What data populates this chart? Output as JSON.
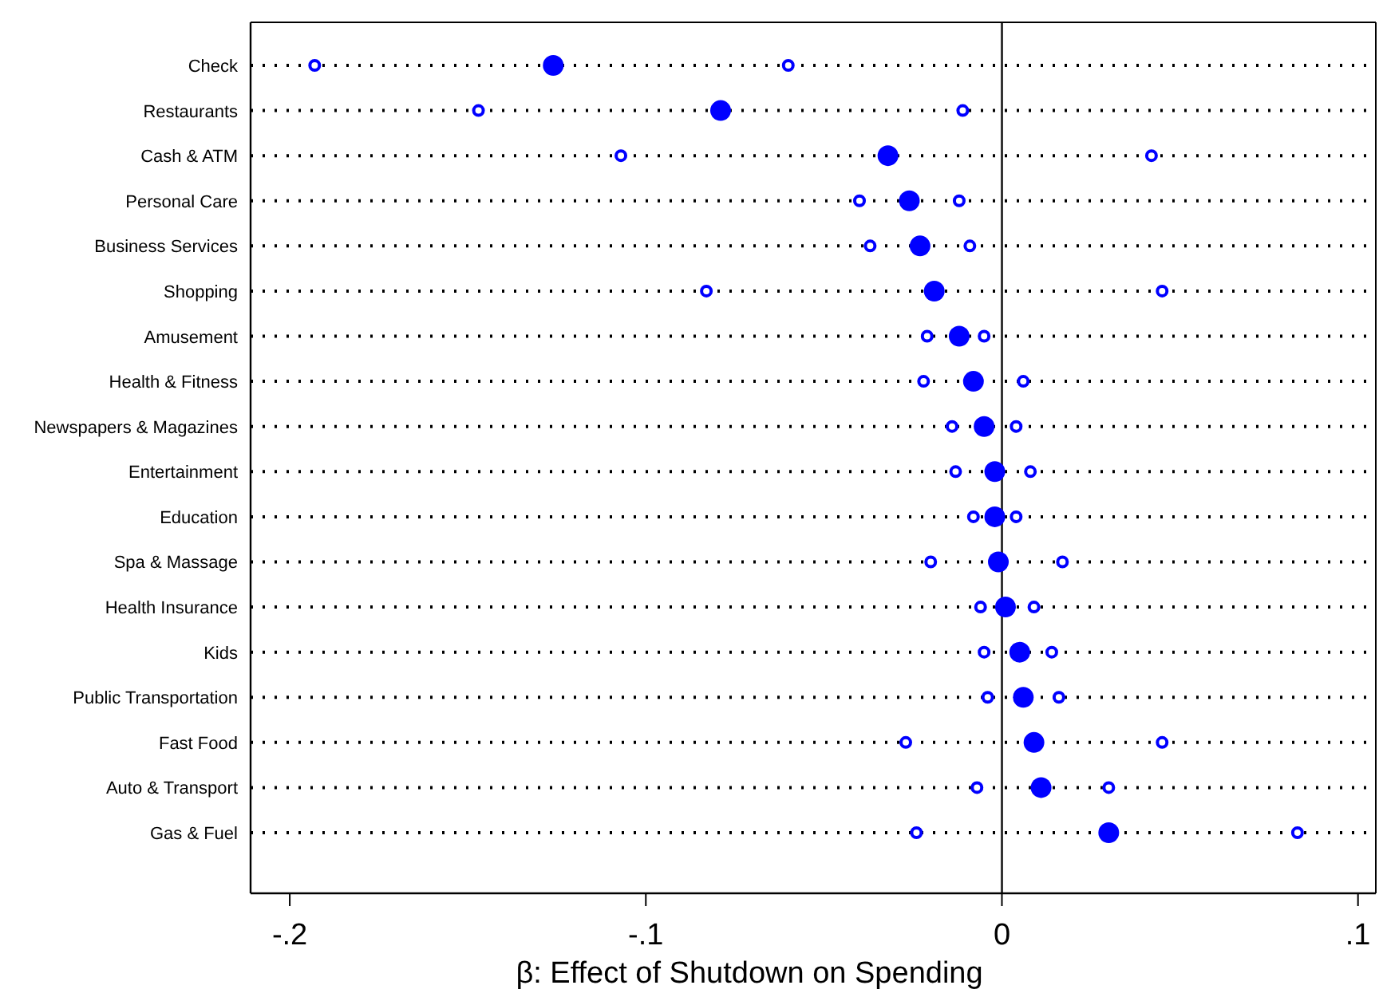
{
  "chart_data": {
    "type": "scatter",
    "orientation": "horizontal",
    "xlabel": "β: Effect of Shutdown on Spending",
    "categories": [
      "Check",
      "Restaurants",
      "Cash & ATM",
      "Personal Care",
      "Business Services",
      "Shopping",
      "Amusement",
      "Health & Fitness",
      "Newspapers & Magazines",
      "Entertainment",
      "Education",
      "Spa & Massage",
      "Health Insurance",
      "Kids",
      "Public Transportation",
      "Fast Food",
      "Auto & Transport",
      "Gas & Fuel"
    ],
    "series": [
      {
        "color": "#0000ff",
        "values": [
          -0.126,
          -0.079,
          -0.032,
          -0.026,
          -0.023,
          -0.019,
          -0.012,
          -0.008,
          -0.005,
          -0.002,
          -0.002,
          -0.001,
          0.001,
          0.005,
          0.006,
          0.009,
          0.011,
          0.03
        ]
      },
      {
        "color": "#0000ff",
        "values": [
          -0.193,
          -0.147,
          -0.107,
          -0.04,
          -0.037,
          -0.083,
          -0.021,
          -0.022,
          -0.014,
          -0.013,
          -0.008,
          -0.02,
          -0.006,
          -0.005,
          -0.004,
          -0.027,
          -0.007,
          -0.024
        ]
      },
      {
        "color": "#0000ff",
        "values": [
          -0.06,
          -0.011,
          0.042,
          -0.012,
          -0.009,
          0.045,
          -0.005,
          0.006,
          0.004,
          0.008,
          0.004,
          0.017,
          0.009,
          0.014,
          0.016,
          0.045,
          0.03,
          0.083
        ]
      }
    ],
    "xlim": [
      -0.211,
      0.105
    ],
    "xticks": [
      {
        "value": -0.2,
        "label": "-.2"
      },
      {
        "value": -0.1,
        "label": "-.1"
      },
      0,
      {
        "value": 0.1,
        "label": ".1"
      }
    ],
    "ref_lines": [
      {
        "axis": "x",
        "value": 0
      }
    ],
    "grid": "y",
    "marker": "circle"
  }
}
